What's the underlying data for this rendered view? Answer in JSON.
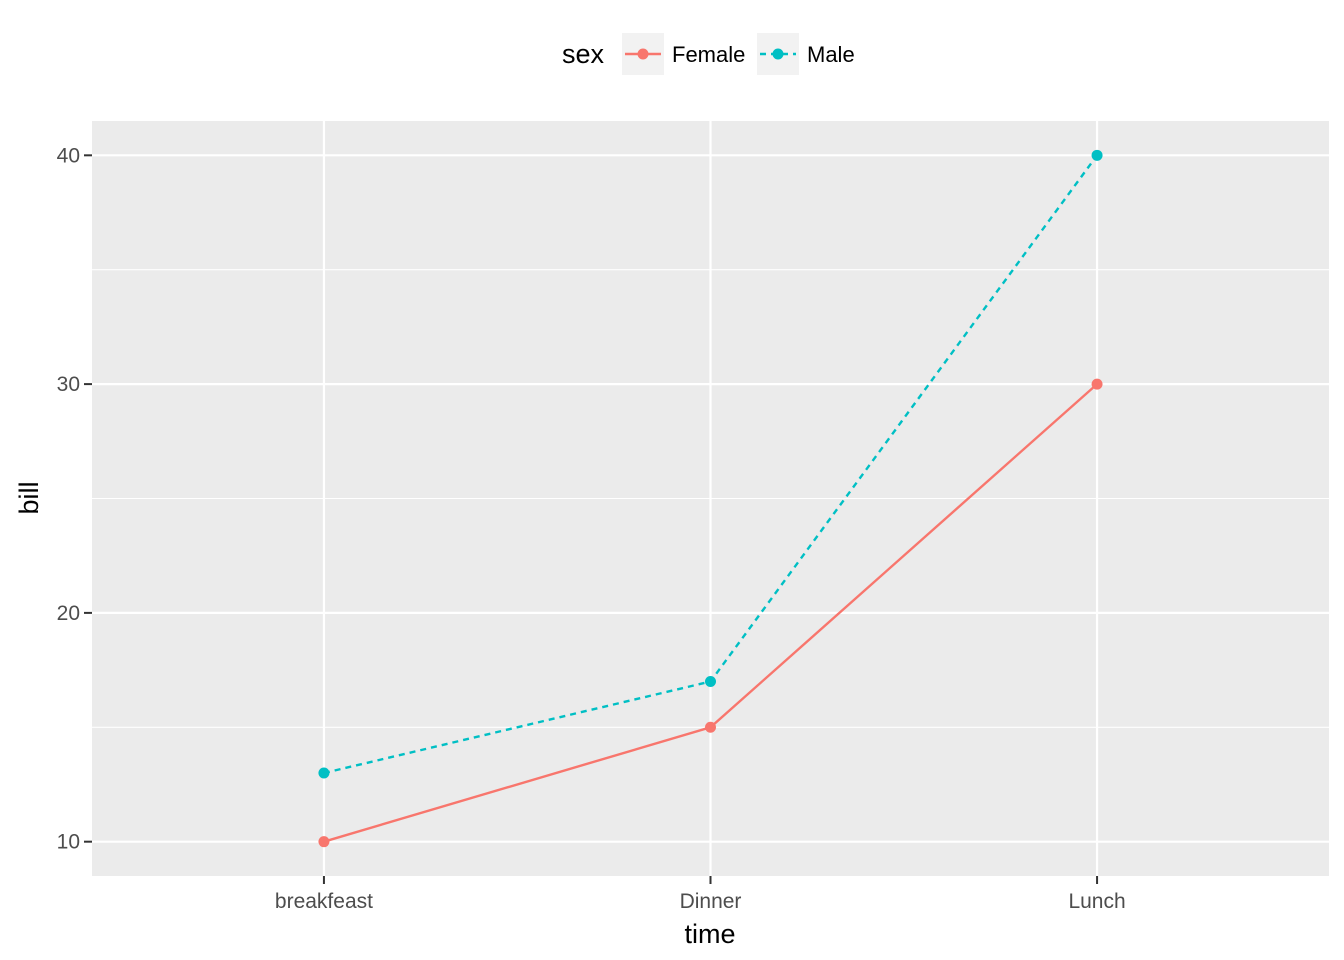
{
  "chart_data": {
    "type": "line",
    "title": "",
    "xlabel": "time",
    "ylabel": "bill",
    "categories": [
      "breakfeast",
      "Dinner",
      "Lunch"
    ],
    "y_ticks": [
      10,
      20,
      30,
      40
    ],
    "ylim": [
      8.5,
      41.5
    ],
    "grid": true,
    "legend": {
      "title": "sex",
      "placement": "top"
    },
    "series": [
      {
        "name": "Female",
        "values": [
          10,
          15,
          30
        ],
        "color": "#F8766D",
        "line_style": "solid"
      },
      {
        "name": "Male",
        "values": [
          13,
          17,
          40
        ],
        "color": "#00BFC4",
        "line_style": "dashed"
      }
    ],
    "panel_background": "#EBEBEB",
    "grid_color": "#FFFFFF"
  }
}
